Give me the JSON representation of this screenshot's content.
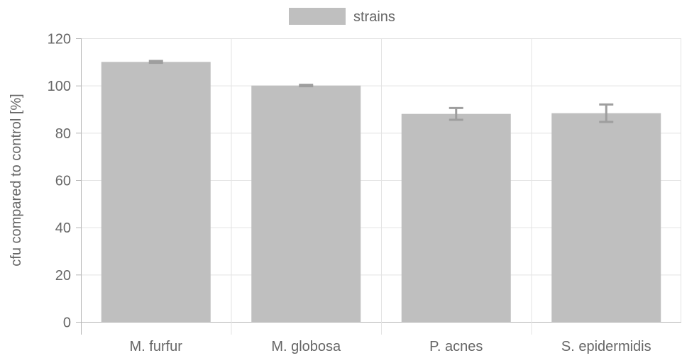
{
  "chart_data": {
    "type": "bar",
    "categories": [
      "M. furfur",
      "M. globosa",
      "P. acnes",
      "S. epidermidis"
    ],
    "series": [
      {
        "name": "strains",
        "values": [
          110,
          100,
          88,
          88.3
        ],
        "error": [
          0.4,
          0.3,
          2.5,
          3.7
        ],
        "color": "#bfbfbf",
        "error_color": "#9e9e9e"
      }
    ],
    "ylabel": "cfu compared to control [%]",
    "xlabel": "",
    "ylim": [
      0,
      120
    ],
    "yticks": [
      0,
      20,
      40,
      60,
      80,
      100,
      120
    ],
    "grid": true,
    "legend_position": "top-center"
  }
}
